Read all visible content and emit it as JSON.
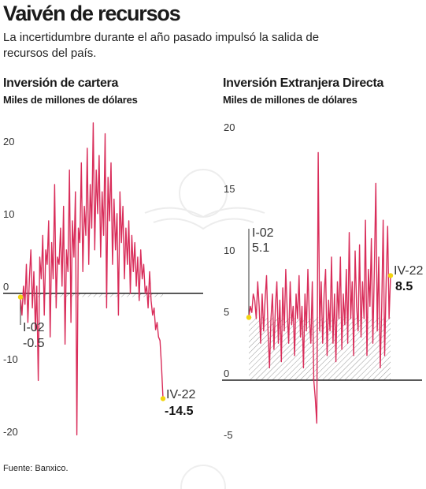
{
  "header": {
    "title": "Vaivén de recursos",
    "subtitle": "La incertidumbre durante el año pasado impulsó la salida de recursos del país."
  },
  "source": "Fuente: Banxico.",
  "colors": {
    "series": "#d92d5a",
    "marker": "#f2d40f",
    "axis": "#222222",
    "hatch": "#9a9a9a"
  },
  "chart_data": [
    {
      "type": "line",
      "title": "Inversión de cartera",
      "ylabel": "Miles de millones de dólares",
      "ylim": [
        -20,
        25
      ],
      "yticks": [
        -20,
        -10,
        0,
        10,
        20
      ],
      "yticklabels": [
        "-20",
        "-10",
        "0",
        "10",
        "20"
      ],
      "grid": false,
      "start_value": {
        "label": "I-02",
        "value": -0.5,
        "value_label": "-0.5"
      },
      "end_value": {
        "label": "IV-22",
        "value": -14.5,
        "value_label": "-14.5"
      },
      "series": [
        {
          "values": [
            -0.5,
            -3,
            1,
            -1.5,
            4,
            -4,
            2,
            6,
            -2,
            3,
            -5,
            1,
            -12,
            5,
            2,
            8,
            -3,
            6,
            4,
            10,
            -6,
            7,
            2,
            15,
            -2,
            5,
            4,
            9,
            1,
            12,
            -7,
            6,
            3,
            17,
            -4,
            10,
            5,
            14,
            -19.5,
            9,
            7,
            18,
            3,
            12,
            8,
            20,
            4,
            15,
            9,
            23.5,
            6,
            17,
            11,
            19,
            5,
            14,
            8,
            22,
            -2,
            16,
            10,
            18,
            4,
            13,
            6,
            11,
            -3,
            14,
            7,
            12,
            2,
            9,
            4,
            10,
            0,
            8,
            3,
            7,
            1,
            5,
            -1,
            6,
            2,
            4,
            0,
            1,
            -2,
            3,
            -1,
            -3,
            -2,
            -5,
            -4,
            -6,
            -6.5,
            -10,
            -14.5
          ]
        }
      ]
    },
    {
      "type": "line",
      "title": "Inversión Extranjera Directa",
      "ylabel": "Miles de millones de dólares",
      "ylim": [
        -5,
        20
      ],
      "yticks": [
        -5,
        0,
        5,
        10,
        15,
        20
      ],
      "yticklabels": [
        "-5",
        "0",
        "5",
        "10",
        "15",
        "20"
      ],
      "grid": false,
      "start_value": {
        "label": "I-02",
        "value": 5.1,
        "value_label": "5.1"
      },
      "end_value": {
        "label": "IV-22",
        "value": 8.5,
        "value_label": "8.5"
      },
      "series": [
        {
          "values": [
            5.1,
            6,
            5.5,
            7,
            6.5,
            5,
            8,
            6,
            3,
            7,
            4,
            6.5,
            8.5,
            4,
            1,
            5,
            7,
            2.5,
            6,
            8,
            3,
            6.5,
            1.5,
            7.5,
            4,
            9,
            5.5,
            3,
            8,
            4.5,
            6,
            2,
            7,
            5,
            8.5,
            3.5,
            6,
            1,
            7,
            4,
            9,
            5,
            3,
            8,
            0,
            -1.5,
            -3.5,
            18.5,
            4,
            8,
            3,
            7,
            9,
            2,
            6.5,
            4,
            10,
            3,
            7,
            1.5,
            8,
            5,
            10,
            2.5,
            7,
            4.5,
            9,
            3,
            12,
            5,
            8,
            2,
            10.5,
            6,
            4,
            11,
            3.5,
            8,
            5,
            13,
            2,
            9,
            6,
            11.5,
            3,
            9,
            16,
            4,
            10,
            1,
            6,
            13,
            2,
            8,
            12.5,
            5,
            8.5
          ]
        }
      ]
    }
  ]
}
